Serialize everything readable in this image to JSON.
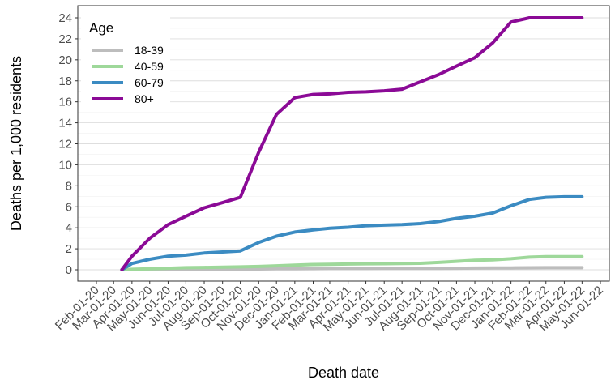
{
  "chart_data": {
    "type": "line",
    "xlabel": "Death date",
    "ylabel": "Deaths per 1,000 residents",
    "ylim": [
      0,
      24
    ],
    "yticks": [
      0,
      2,
      4,
      6,
      8,
      10,
      12,
      14,
      16,
      18,
      20,
      22,
      24
    ],
    "grid": true,
    "legend": {
      "title": "Age",
      "position": "top-left"
    },
    "xticks": [
      "Feb-01-20",
      "Mar-01-20",
      "Apr-01-20",
      "May-01-20",
      "Jun-01-20",
      "Jul-01-20",
      "Aug-01-20",
      "Sep-01-20",
      "Oct-01-20",
      "Nov-01-20",
      "Dec-01-20",
      "Jan-01-21",
      "Feb-01-21",
      "Mar-01-21",
      "Apr-01-21",
      "May-01-21",
      "Jun-01-21",
      "Jul-01-21",
      "Aug-01-21",
      "Sep-01-21",
      "Oct-01-21",
      "Nov-01-21",
      "Dec-01-21",
      "Jan-01-22",
      "Feb-01-22",
      "Mar-01-22",
      "Apr-01-22",
      "May-01-22",
      "Jun-01-22"
    ],
    "x": [
      "Mar-15-20",
      "Apr-01-20",
      "May-01-20",
      "Jun-01-20",
      "Jul-01-20",
      "Aug-01-20",
      "Sep-01-20",
      "Oct-01-20",
      "Nov-01-20",
      "Dec-01-20",
      "Jan-01-21",
      "Feb-01-21",
      "Mar-01-21",
      "Apr-01-21",
      "May-01-21",
      "Jun-01-21",
      "Jul-01-21",
      "Aug-01-21",
      "Sep-01-21",
      "Oct-01-21",
      "Nov-01-21",
      "Dec-01-21",
      "Jan-01-22",
      "Feb-01-22",
      "Mar-01-22",
      "Apr-01-22",
      "May-01-22"
    ],
    "series": [
      {
        "name": "18-39",
        "color": "#bdbdbd",
        "values": [
          0,
          0.02,
          0.03,
          0.04,
          0.05,
          0.06,
          0.06,
          0.07,
          0.08,
          0.09,
          0.1,
          0.11,
          0.12,
          0.12,
          0.12,
          0.13,
          0.13,
          0.13,
          0.14,
          0.15,
          0.16,
          0.17,
          0.18,
          0.19,
          0.2,
          0.2,
          0.2
        ]
      },
      {
        "name": "40-59",
        "color": "#9ed89a",
        "values": [
          0,
          0.05,
          0.1,
          0.15,
          0.2,
          0.22,
          0.25,
          0.28,
          0.32,
          0.38,
          0.45,
          0.5,
          0.52,
          0.55,
          0.57,
          0.58,
          0.6,
          0.62,
          0.7,
          0.8,
          0.9,
          0.95,
          1.05,
          1.2,
          1.25,
          1.25,
          1.25
        ]
      },
      {
        "name": "60-79",
        "color": "#3b8bc2",
        "values": [
          0,
          0.6,
          1.0,
          1.3,
          1.4,
          1.6,
          1.7,
          1.8,
          2.6,
          3.2,
          3.6,
          3.8,
          3.95,
          4.05,
          4.2,
          4.25,
          4.3,
          4.4,
          4.6,
          4.9,
          5.1,
          5.4,
          6.1,
          6.7,
          6.9,
          6.95,
          6.95
        ]
      },
      {
        "name": "80+",
        "color": "#8b0a96",
        "values": [
          0,
          1.3,
          3.0,
          4.3,
          5.1,
          5.9,
          6.4,
          6.9,
          11.2,
          14.8,
          16.4,
          16.7,
          16.75,
          16.9,
          16.95,
          17.05,
          17.2,
          17.9,
          18.6,
          19.4,
          20.2,
          21.6,
          23.6,
          24.0,
          24.0,
          24.0,
          24.0
        ]
      }
    ]
  }
}
